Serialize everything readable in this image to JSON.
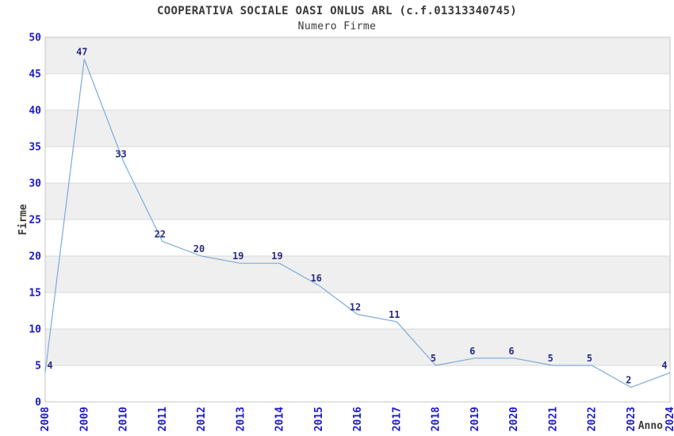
{
  "chart_data": {
    "type": "line",
    "title": "COOPERATIVA SOCIALE OASI ONLUS ARL (c.f.01313340745)",
    "subtitle": "Numero Firme",
    "xlabel": "Anno",
    "ylabel": "Firme",
    "categories": [
      "2008",
      "2009",
      "2010",
      "2011",
      "2012",
      "2013",
      "2014",
      "2015",
      "2016",
      "2017",
      "2018",
      "2019",
      "2020",
      "2021",
      "2022",
      "2023",
      "2024"
    ],
    "values": [
      4,
      47,
      33,
      22,
      20,
      19,
      19,
      16,
      12,
      11,
      5,
      6,
      6,
      5,
      5,
      2,
      4
    ],
    "ylim": [
      0,
      50
    ],
    "ytick_step": 5,
    "yticks": [
      0,
      5,
      10,
      15,
      20,
      25,
      30,
      35,
      40,
      45,
      50
    ],
    "legend": "none",
    "grid": "horizontal-alternating-bands",
    "colors": {
      "line": "#7cabdb",
      "tick_label": "#1a1acc",
      "data_label": "#2b2b85",
      "band": "#efefef",
      "grid_line": "#d8d8d8",
      "axis_border": "#c4c4c4",
      "text": "#3a3a3a",
      "background": "#ffffff"
    }
  }
}
